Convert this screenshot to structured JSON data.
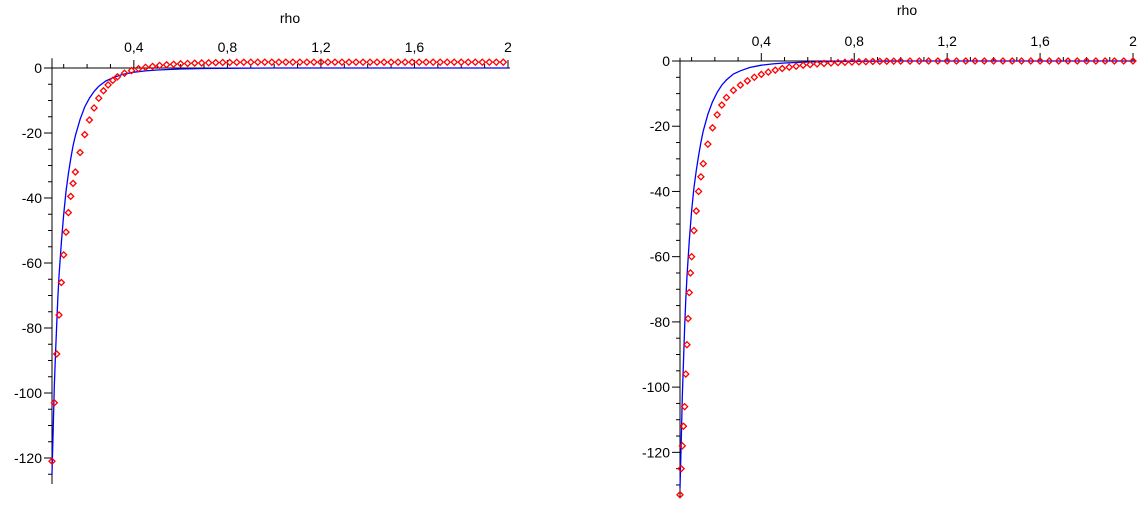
{
  "colors": {
    "curve": "#0000ff",
    "points": "#ff0000",
    "axes": "#000000"
  },
  "chart_data": [
    {
      "type": "line",
      "xlabel": "rho",
      "ylabel": "",
      "xlim": [
        0.05,
        2.0
      ],
      "ylim": [
        -128,
        3
      ],
      "x_ticks": [
        {
          "value": 0.4,
          "label": "0,4"
        },
        {
          "value": 0.8,
          "label": "0,8"
        },
        {
          "value": 1.2,
          "label": "1,2"
        },
        {
          "value": 1.6,
          "label": "1,6"
        },
        {
          "value": 2.0,
          "label": "2"
        }
      ],
      "y_ticks": [
        {
          "value": 0,
          "label": "0"
        },
        {
          "value": -20,
          "label": "-20"
        },
        {
          "value": -40,
          "label": "-40"
        },
        {
          "value": -60,
          "label": "-60"
        },
        {
          "value": -80,
          "label": "-80"
        },
        {
          "value": -100,
          "label": "-100"
        },
        {
          "value": -120,
          "label": "-120"
        }
      ],
      "grid": false,
      "series": [
        {
          "style": "line",
          "color": "#0000ff",
          "x": [
            0.05,
            0.055,
            0.06,
            0.065,
            0.07,
            0.075,
            0.08,
            0.09,
            0.1,
            0.11,
            0.12,
            0.13,
            0.14,
            0.15,
            0.17,
            0.19,
            0.21,
            0.23,
            0.25,
            0.28,
            0.31,
            0.35,
            0.4,
            0.45,
            0.5,
            0.6,
            0.7,
            0.85,
            1.0,
            1.2,
            1.5,
            2.0
          ],
          "y": [
            -125,
            -111,
            -98,
            -88,
            -79,
            -71,
            -64,
            -53.5,
            -45,
            -38,
            -32.5,
            -28,
            -24,
            -20.8,
            -15.8,
            -12,
            -9.3,
            -7.2,
            -5.6,
            -4.0,
            -3.0,
            -2.0,
            -1.3,
            -0.9,
            -0.6,
            -0.3,
            -0.15,
            -0.05,
            0,
            0,
            0,
            0
          ]
        },
        {
          "style": "markers",
          "marker": "diamond",
          "color": "#ff0000",
          "x": [
            0.05,
            0.06,
            0.07,
            0.08,
            0.09,
            0.1,
            0.11,
            0.12,
            0.13,
            0.14,
            0.15,
            0.17,
            0.19,
            0.21,
            0.23,
            0.25,
            0.27,
            0.29,
            0.31,
            0.33,
            0.36,
            0.39,
            0.42,
            0.45,
            0.48,
            0.51,
            0.54,
            0.57,
            0.6,
            0.63,
            0.66,
            0.69,
            0.72,
            0.75,
            0.78,
            0.81,
            0.84,
            0.87,
            0.9,
            0.93,
            0.96,
            0.99,
            1.02,
            1.05,
            1.08,
            1.11,
            1.14,
            1.17,
            1.2,
            1.23,
            1.26,
            1.29,
            1.32,
            1.35,
            1.38,
            1.41,
            1.44,
            1.47,
            1.5,
            1.53,
            1.56,
            1.59,
            1.62,
            1.65,
            1.68,
            1.71,
            1.74,
            1.77,
            1.8,
            1.83,
            1.86,
            1.89,
            1.92,
            1.95,
            1.98
          ],
          "y": [
            -121,
            -103,
            -88,
            -76,
            -66,
            -57.5,
            -50.5,
            -44.5,
            -39.5,
            -35.5,
            -32,
            -26,
            -20.5,
            -16,
            -12.3,
            -9.3,
            -7,
            -5.2,
            -3.8,
            -2.7,
            -1.6,
            -0.8,
            -0.2,
            0.2,
            0.5,
            0.8,
            1.0,
            1.15,
            1.3,
            1.4,
            1.5,
            1.55,
            1.6,
            1.65,
            1.7,
            1.72,
            1.75,
            1.77,
            1.78,
            1.8,
            1.8,
            1.8,
            1.8,
            1.8,
            1.8,
            1.8,
            1.8,
            1.8,
            1.8,
            1.8,
            1.8,
            1.8,
            1.8,
            1.8,
            1.8,
            1.8,
            1.8,
            1.8,
            1.8,
            1.8,
            1.8,
            1.8,
            1.8,
            1.8,
            1.8,
            1.8,
            1.8,
            1.8,
            1.8,
            1.8,
            1.8,
            1.8,
            1.8,
            1.8,
            1.8
          ]
        }
      ]
    },
    {
      "type": "line",
      "xlabel": "rho",
      "ylabel": "",
      "xlim": [
        0.05,
        2.0
      ],
      "ylim": [
        -134,
        1
      ],
      "x_ticks": [
        {
          "value": 0.4,
          "label": "0,4"
        },
        {
          "value": 0.8,
          "label": "0,8"
        },
        {
          "value": 1.2,
          "label": "1,2"
        },
        {
          "value": 1.6,
          "label": "1,6"
        },
        {
          "value": 2.0,
          "label": "2"
        }
      ],
      "y_ticks": [
        {
          "value": 0,
          "label": "0"
        },
        {
          "value": -20,
          "label": "-20"
        },
        {
          "value": -40,
          "label": "-40"
        },
        {
          "value": -60,
          "label": "-60"
        },
        {
          "value": -80,
          "label": "-80"
        },
        {
          "value": -100,
          "label": "-100"
        },
        {
          "value": -120,
          "label": "-120"
        }
      ],
      "grid": false,
      "series": [
        {
          "style": "line",
          "color": "#0000ff",
          "x": [
            0.05,
            0.055,
            0.06,
            0.065,
            0.07,
            0.075,
            0.08,
            0.09,
            0.1,
            0.11,
            0.12,
            0.13,
            0.14,
            0.15,
            0.17,
            0.19,
            0.21,
            0.23,
            0.25,
            0.28,
            0.31,
            0.35,
            0.4,
            0.45,
            0.5,
            0.6,
            0.7,
            0.85,
            1.0,
            1.2,
            1.5,
            2.0
          ],
          "y": [
            -131,
            -117,
            -103,
            -92,
            -82,
            -73,
            -66,
            -55,
            -46,
            -39,
            -33.5,
            -29,
            -25,
            -21.5,
            -16.3,
            -12.5,
            -9.6,
            -7.4,
            -5.8,
            -4.0,
            -3.0,
            -2.0,
            -1.3,
            -0.9,
            -0.6,
            -0.3,
            -0.15,
            -0.05,
            0,
            0,
            0,
            0
          ]
        },
        {
          "style": "markers",
          "marker": "diamond",
          "color": "#ff0000",
          "x": [
            0.05,
            0.055,
            0.06,
            0.065,
            0.07,
            0.075,
            0.08,
            0.085,
            0.09,
            0.095,
            0.1,
            0.11,
            0.12,
            0.13,
            0.14,
            0.15,
            0.17,
            0.19,
            0.21,
            0.23,
            0.25,
            0.28,
            0.31,
            0.34,
            0.37,
            0.4,
            0.43,
            0.46,
            0.49,
            0.52,
            0.55,
            0.58,
            0.61,
            0.64,
            0.67,
            0.7,
            0.73,
            0.76,
            0.79,
            0.82,
            0.85,
            0.88,
            0.91,
            0.94,
            0.97,
            1.0,
            1.04,
            1.08,
            1.12,
            1.16,
            1.2,
            1.24,
            1.28,
            1.32,
            1.36,
            1.4,
            1.44,
            1.48,
            1.52,
            1.56,
            1.6,
            1.64,
            1.68,
            1.72,
            1.76,
            1.8,
            1.84,
            1.88,
            1.92,
            1.96,
            2.0
          ],
          "y": [
            -133,
            -125,
            -118,
            -112,
            -106,
            -96,
            -87,
            -79,
            -71,
            -65,
            -60,
            -52,
            -46,
            -40,
            -35.5,
            -31.5,
            -25.5,
            -20.5,
            -16.5,
            -13.5,
            -11.2,
            -9,
            -7.4,
            -6.1,
            -5,
            -4.1,
            -3.4,
            -2.8,
            -2.3,
            -1.9,
            -1.6,
            -1.3,
            -1.1,
            -0.9,
            -0.75,
            -0.6,
            -0.5,
            -0.4,
            -0.32,
            -0.25,
            -0.2,
            -0.15,
            -0.1,
            -0.07,
            -0.05,
            -0.03,
            -0.02,
            -0.01,
            0,
            0,
            0,
            0,
            0,
            0,
            0,
            0,
            0,
            0,
            0,
            0,
            0,
            0,
            0,
            0,
            0,
            0,
            0,
            0,
            0,
            0,
            0
          ]
        }
      ]
    }
  ]
}
